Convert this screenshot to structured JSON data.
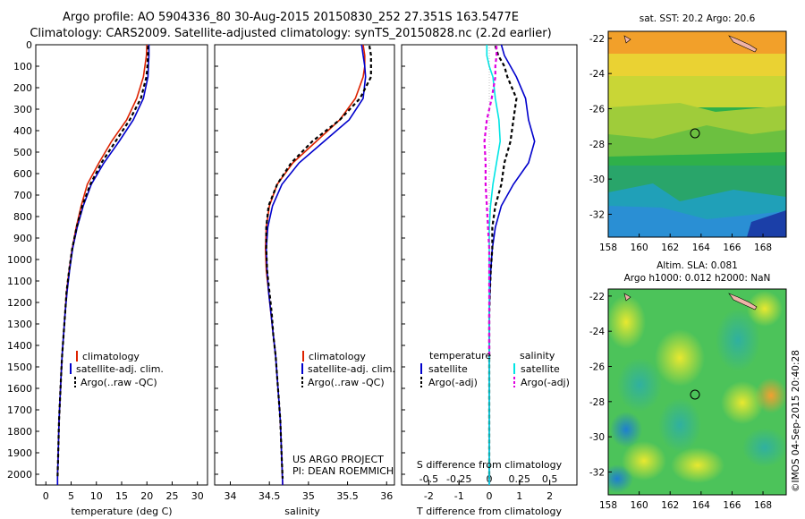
{
  "title_line1": "Argo profile: AO 5904336_80 30-Aug-2015 20150830_252 27.351S 163.5477E",
  "title_line2": "Climatology: CARS2009. Satellite-adjusted climatology: synTS_20150828.nc (2.2d earlier)",
  "credit": "©IMOS 04-Sep-2015 20:40:28",
  "project_note": [
    "US ARGO PROJECT",
    "PI: DEAN ROEMMICH"
  ],
  "colors": {
    "climatology": "#dd2200",
    "satellite": "#0000cc",
    "argo": "#000000",
    "sat_salinity": "#00e5e5",
    "argo_salinity": "#e000e0"
  },
  "chart_data": [
    {
      "type": "line",
      "xlabel": "temperature (deg C)",
      "ylabel": "",
      "xlim": [
        -2,
        32
      ],
      "ylim": [
        2050,
        0
      ],
      "xticks": [
        0,
        5,
        10,
        15,
        20,
        25,
        30
      ],
      "yticks": [
        0,
        100,
        200,
        300,
        400,
        500,
        600,
        700,
        800,
        900,
        1000,
        1100,
        1200,
        1300,
        1400,
        1500,
        1600,
        1700,
        1800,
        1900,
        2000
      ],
      "legend": [
        "climatology",
        "satellite-adj. clim.",
        "Argo(..raw -QC)"
      ],
      "series": [
        {
          "name": "climatology",
          "x": [
            20.0,
            19.9,
            19.6,
            19.3,
            18.0,
            16.0,
            13.0,
            10.5,
            8.2,
            7.0,
            6.0,
            5.2,
            4.6,
            4.1,
            3.8,
            3.5,
            3.2,
            3.0,
            2.8,
            2.6,
            2.5,
            2.4,
            2.3,
            2.3
          ],
          "y": [
            0,
            50,
            100,
            150,
            250,
            350,
            450,
            550,
            650,
            750,
            850,
            950,
            1050,
            1150,
            1250,
            1350,
            1450,
            1550,
            1650,
            1750,
            1850,
            1950,
            2000,
            2050
          ]
        },
        {
          "name": "satellite-adj. clim.",
          "x": [
            20.4,
            20.4,
            20.3,
            20.2,
            19.3,
            17.3,
            14.5,
            11.5,
            9.0,
            7.4,
            6.2,
            5.3,
            4.7,
            4.2,
            3.8,
            3.5,
            3.2,
            3.0,
            2.8,
            2.6,
            2.5,
            2.4,
            2.3,
            2.3
          ],
          "y": [
            0,
            50,
            100,
            150,
            250,
            350,
            450,
            550,
            650,
            750,
            850,
            950,
            1050,
            1150,
            1250,
            1350,
            1450,
            1550,
            1650,
            1750,
            1850,
            1950,
            2000,
            2050
          ]
        },
        {
          "name": "Argo(..raw -QC)",
          "x": [
            20.2,
            20.2,
            20.1,
            19.9,
            18.8,
            16.6,
            13.8,
            11.0,
            8.8,
            7.2,
            6.1,
            5.2,
            4.6,
            4.1,
            3.8,
            3.5,
            3.2,
            3.0,
            2.8,
            2.6,
            2.5,
            2.4,
            2.3
          ],
          "y": [
            5,
            50,
            100,
            150,
            250,
            350,
            450,
            550,
            650,
            750,
            850,
            950,
            1050,
            1150,
            1250,
            1350,
            1450,
            1550,
            1650,
            1750,
            1850,
            1950,
            2020
          ]
        }
      ]
    },
    {
      "type": "line",
      "xlabel": "salinity",
      "ylabel": "",
      "xlim": [
        33.8,
        36.1
      ],
      "ylim": [
        2050,
        0
      ],
      "xticks": [
        34,
        34.5,
        35,
        35.5,
        36
      ],
      "legend": [
        "climatology",
        "satellite-adj. clim.",
        "Argo(..raw -QC)"
      ],
      "series": [
        {
          "name": "climatology",
          "x": [
            35.7,
            35.72,
            35.72,
            35.7,
            35.6,
            35.4,
            35.1,
            34.8,
            34.6,
            34.5,
            34.46,
            34.45,
            34.46,
            34.49,
            34.52,
            34.55,
            34.58,
            34.6,
            34.62,
            34.64,
            34.65,
            34.66,
            34.67
          ],
          "y": [
            0,
            50,
            100,
            150,
            250,
            350,
            450,
            550,
            650,
            750,
            850,
            950,
            1050,
            1150,
            1250,
            1350,
            1450,
            1550,
            1650,
            1750,
            1850,
            1950,
            2050
          ]
        },
        {
          "name": "satellite-adj. clim.",
          "x": [
            35.68,
            35.7,
            35.72,
            35.73,
            35.7,
            35.52,
            35.2,
            34.88,
            34.66,
            34.54,
            34.48,
            34.46,
            34.47,
            34.49,
            34.52,
            34.55,
            34.58,
            34.6,
            34.62,
            34.64,
            34.65,
            34.66,
            34.67
          ],
          "y": [
            0,
            50,
            100,
            150,
            250,
            350,
            450,
            550,
            650,
            750,
            850,
            950,
            1050,
            1150,
            1250,
            1350,
            1450,
            1550,
            1650,
            1750,
            1850,
            1950,
            2050
          ]
        },
        {
          "name": "Argo(..raw -QC)",
          "x": [
            35.78,
            35.8,
            35.8,
            35.8,
            35.66,
            35.4,
            35.05,
            34.78,
            34.6,
            34.49,
            34.46,
            34.46,
            34.47,
            34.5,
            34.53,
            34.55,
            34.58,
            34.6,
            34.62,
            34.64,
            34.65,
            34.66,
            34.67
          ],
          "y": [
            5,
            50,
            100,
            150,
            250,
            350,
            450,
            550,
            650,
            750,
            850,
            950,
            1050,
            1150,
            1250,
            1350,
            1450,
            1550,
            1650,
            1750,
            1850,
            1950,
            2020
          ]
        }
      ]
    },
    {
      "type": "line",
      "xlabel": "T difference from climatology",
      "x2label": "S difference from climatology",
      "ylabel": "",
      "xlim": [
        -2.9,
        2.9
      ],
      "x2lim": [
        -0.725,
        0.725
      ],
      "ylim": [
        2050,
        0
      ],
      "xticks": [
        -2,
        -1,
        0,
        1,
        2
      ],
      "x2ticks": [
        -0.5,
        -0.25,
        0,
        0.25,
        0.5
      ],
      "x2ticklabels": [
        "-0.5",
        "-0.25",
        "0",
        "0.25",
        "0.5"
      ],
      "legend_groups": [
        "temperature",
        "salinity"
      ],
      "legend": [
        "satellite",
        "Argo(-adj)",
        "satellite",
        "Argo(-adj)"
      ],
      "series": [
        {
          "name": "satellite",
          "group": "temperature",
          "x": [
            0.4,
            0.5,
            0.7,
            0.9,
            1.2,
            1.3,
            1.5,
            1.3,
            0.8,
            0.4,
            0.2,
            0.1,
            0.05,
            0.02,
            0.0,
            0.0,
            0.0,
            0.0,
            0.0,
            0.0
          ],
          "y": [
            0,
            50,
            100,
            150,
            250,
            350,
            450,
            550,
            650,
            750,
            850,
            950,
            1050,
            1150,
            1250,
            1350,
            1450,
            1600,
            1800,
            2050
          ]
        },
        {
          "name": "Argo(-adj)",
          "group": "temperature",
          "x": [
            0.2,
            0.3,
            0.5,
            0.6,
            0.9,
            0.8,
            0.7,
            0.5,
            0.4,
            0.2,
            0.1,
            0.1,
            0.05,
            0.02,
            0.0,
            0.0,
            0.0,
            0.0,
            0.0,
            0.0
          ],
          "y": [
            5,
            50,
            100,
            150,
            250,
            350,
            450,
            550,
            650,
            750,
            850,
            950,
            1050,
            1150,
            1250,
            1350,
            1450,
            1600,
            1800,
            2020
          ]
        },
        {
          "name": "satellite",
          "group": "salinity",
          "x": [
            -0.02,
            -0.02,
            0.0,
            0.03,
            0.05,
            0.08,
            0.09,
            0.06,
            0.03,
            0.01,
            0.0,
            0.0,
            0.0,
            0.0,
            0.0,
            0.0,
            0.0,
            0.0
          ],
          "y": [
            0,
            50,
            100,
            150,
            250,
            350,
            450,
            550,
            650,
            750,
            850,
            950,
            1050,
            1150,
            1350,
            1600,
            1800,
            2050
          ]
        },
        {
          "name": "Argo(-adj)",
          "group": "salinity",
          "x": [
            0.06,
            0.06,
            0.05,
            0.05,
            0.02,
            -0.02,
            -0.04,
            -0.03,
            -0.03,
            -0.02,
            -0.01,
            0.0,
            0.0,
            0.0,
            0.0,
            0.0
          ],
          "y": [
            5,
            50,
            100,
            150,
            250,
            350,
            450,
            550,
            650,
            750,
            850,
            950,
            1050,
            1200,
            1400,
            1450
          ]
        }
      ]
    },
    {
      "type": "heatmap",
      "title": "sat. SST: 20.2  Argo: 20.6",
      "xlim": [
        158,
        169.5
      ],
      "ylim": [
        -33.3,
        -21.6
      ],
      "xticks": [
        158,
        160,
        162,
        164,
        166,
        168
      ],
      "yticks": [
        -22,
        -24,
        -26,
        -28,
        -30,
        -32
      ],
      "marker": {
        "lon": 163.55,
        "lat": -27.35
      }
    },
    {
      "type": "heatmap",
      "title_lines": [
        "Altim. SLA: 0.081",
        "Argo h1000: 0.012 h2000: NaN"
      ],
      "xlim": [
        158,
        169.5
      ],
      "ylim": [
        -33.3,
        -21.6
      ],
      "xticks": [
        158,
        160,
        162,
        164,
        166,
        168
      ],
      "yticks": [
        -22,
        -24,
        -26,
        -28,
        -30,
        -32
      ],
      "marker": {
        "lon": 163.55,
        "lat": -27.35
      }
    }
  ]
}
